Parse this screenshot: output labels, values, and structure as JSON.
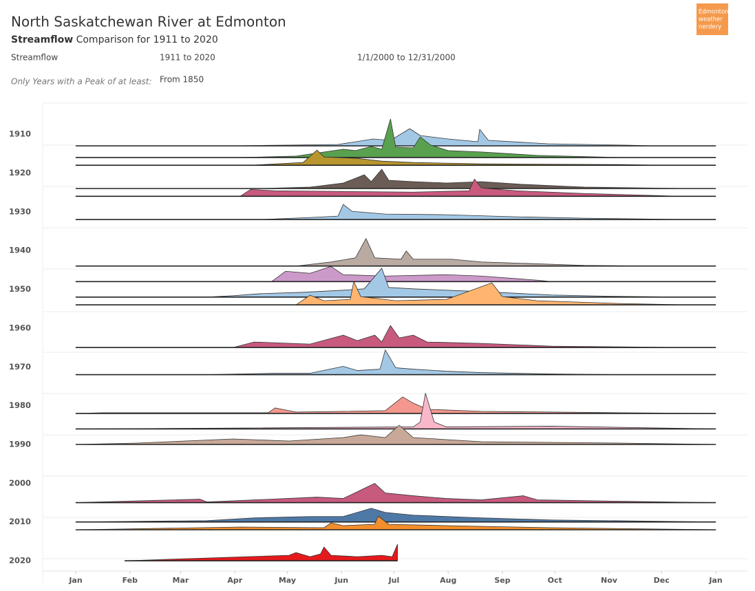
{
  "header": {
    "title": "North Saskatchewan River at Edmonton",
    "subtitle_bold": "Streamflow",
    "subtitle_rest": "Comparison for 1911 to 2020",
    "filters": [
      "Streamflow",
      "1911 to 2020",
      "1/1/2000 to 12/31/2000"
    ],
    "peak_label": "Only Years with a Peak of at least:",
    "peak_value": "From 1850",
    "logo": [
      "Edmonton",
      "weather",
      "nerdery"
    ]
  },
  "chart_data": {
    "type": "ridgeline",
    "xlim": [
      0,
      366
    ],
    "xticks": [
      {
        "value": 0,
        "label": "Jan"
      },
      {
        "value": 31,
        "label": "Feb"
      },
      {
        "value": 60,
        "label": "Mar"
      },
      {
        "value": 91,
        "label": "Apr"
      },
      {
        "value": 121,
        "label": "May"
      },
      {
        "value": 152,
        "label": "Jun"
      },
      {
        "value": 182,
        "label": "Jul"
      },
      {
        "value": 213,
        "label": "Aug"
      },
      {
        "value": 244,
        "label": "Sep"
      },
      {
        "value": 274,
        "label": "Oct"
      },
      {
        "value": 305,
        "label": "Nov"
      },
      {
        "value": 335,
        "label": "Dec"
      },
      {
        "value": 366,
        "label": "Jan"
      }
    ],
    "ylim": [
      1902,
      2023
    ],
    "yticks": [
      1910,
      1920,
      1930,
      1940,
      1950,
      1960,
      1970,
      1980,
      1990,
      2000,
      2010,
      2020
    ],
    "series": [
      {
        "year": 1913,
        "color": "#a3c8e6",
        "x": [
          0,
          90,
          150,
          170,
          180,
          191,
          197,
          213,
          230,
          231,
          236,
          270,
          315,
          330,
          366
        ],
        "values": [
          0,
          0,
          2,
          10,
          8,
          25,
          15,
          10,
          6,
          24,
          8,
          3,
          1,
          0,
          0
        ]
      },
      {
        "year": 1916,
        "color": "#59a14f",
        "x": [
          0,
          94,
          126,
          153,
          160,
          169,
          175,
          180,
          183,
          193,
          197,
          203,
          213,
          232,
          264,
          311,
          366
        ],
        "values": [
          0,
          0,
          2,
          12,
          10,
          16,
          12,
          56,
          15,
          14,
          30,
          18,
          10,
          8,
          3,
          0,
          0
        ]
      },
      {
        "year": 1918,
        "color": "#b8962e",
        "x": [
          0,
          100,
          130,
          138,
          142,
          161,
          175,
          193,
          232,
          311,
          335,
          366
        ],
        "values": [
          0,
          0,
          4,
          22,
          12,
          10,
          6,
          4,
          2,
          1,
          0,
          0
        ]
      },
      {
        "year": 1924,
        "color": "#6b5c55",
        "x": [
          0,
          106,
          134,
          153,
          165,
          169,
          175,
          179,
          193,
          212,
          232,
          256,
          291,
          350,
          366
        ],
        "values": [
          0,
          0,
          2,
          8,
          20,
          10,
          28,
          12,
          10,
          8,
          10,
          6,
          2,
          0,
          0
        ]
      },
      {
        "year": 1926,
        "color": "#c85a7e",
        "x": [
          0,
          94,
          100,
          114,
          153,
          193,
          225,
          228,
          232,
          252,
          291,
          346,
          366
        ],
        "values": [
          0,
          0,
          10,
          8,
          7,
          6,
          8,
          25,
          12,
          8,
          4,
          0,
          0
        ]
      },
      {
        "year": 1932,
        "color": "#a3c8e6",
        "x": [
          0,
          106,
          134,
          150,
          153,
          158,
          177,
          212,
          252,
          291,
          350,
          366
        ],
        "values": [
          0,
          0,
          3,
          5,
          22,
          12,
          8,
          7,
          4,
          2,
          0,
          0
        ]
      },
      {
        "year": 1944,
        "color": "#b9aaa2",
        "x": [
          0,
          126,
          146,
          160,
          166,
          171,
          186,
          189,
          193,
          215,
          232,
          291,
          330,
          366
        ],
        "values": [
          0,
          0,
          6,
          12,
          40,
          12,
          10,
          22,
          10,
          10,
          6,
          1,
          0,
          0
        ]
      },
      {
        "year": 1948,
        "color": "#cc9ac9",
        "x": [
          0,
          112,
          120,
          134,
          146,
          153,
          177,
          212,
          232,
          264,
          272,
          366
        ],
        "values": [
          0,
          0,
          15,
          12,
          22,
          10,
          8,
          10,
          8,
          2,
          0,
          0
        ]
      },
      {
        "year": 1952,
        "color": "#a3c8e6",
        "x": [
          0,
          75,
          90,
          106,
          130,
          153,
          165,
          175,
          179,
          193,
          212,
          232,
          272,
          311,
          350,
          366
        ],
        "values": [
          0,
          0,
          2,
          5,
          7,
          10,
          12,
          42,
          14,
          12,
          10,
          8,
          3,
          1,
          0,
          0
        ]
      },
      {
        "year": 1954,
        "color": "#ffb570",
        "x": [
          0,
          126,
          134,
          142,
          157,
          159,
          163,
          183,
          212,
          238,
          244,
          264,
          311,
          350,
          366
        ],
        "values": [
          0,
          0,
          14,
          6,
          8,
          34,
          12,
          6,
          8,
          32,
          12,
          6,
          2,
          0,
          0
        ]
      },
      {
        "year": 1965,
        "color": "#c85a7e",
        "x": [
          0,
          90,
          102,
          134,
          153,
          161,
          171,
          175,
          180,
          185,
          193,
          201,
          232,
          272,
          350,
          366
        ],
        "values": [
          0,
          0,
          8,
          5,
          18,
          10,
          18,
          8,
          32,
          14,
          18,
          8,
          6,
          2,
          0,
          0
        ]
      },
      {
        "year": 1972,
        "color": "#a3c8e6",
        "x": [
          0,
          75,
          114,
          134,
          153,
          161,
          174,
          177,
          183,
          193,
          212,
          232,
          272,
          311,
          366
        ],
        "values": [
          0,
          0,
          2,
          2,
          12,
          6,
          8,
          36,
          10,
          8,
          5,
          3,
          1,
          0,
          0
        ]
      },
      {
        "year": 1982,
        "color": "#f4978e",
        "x": [
          0,
          16,
          110,
          114,
          126,
          153,
          177,
          187,
          193,
          201,
          232,
          311,
          366
        ],
        "values": [
          0,
          1,
          1,
          8,
          2,
          3,
          4,
          24,
          15,
          6,
          3,
          1,
          0
        ]
      },
      {
        "year": 1986,
        "color": "#f9b8c9",
        "x": [
          0,
          75,
          193,
          197,
          200,
          205,
          212,
          272,
          366
        ],
        "values": [
          0,
          1,
          3,
          10,
          52,
          10,
          3,
          4,
          0
        ]
      },
      {
        "year": 1990,
        "color": "#c8a898",
        "x": [
          0,
          35,
          90,
          122,
          153,
          163,
          177,
          185,
          193,
          232,
          311,
          366
        ],
        "values": [
          0,
          2,
          8,
          5,
          10,
          14,
          10,
          28,
          10,
          4,
          2,
          0
        ]
      },
      {
        "year": 2005,
        "color": "#c85a7e",
        "x": [
          0,
          71,
          75,
          94,
          138,
          153,
          171,
          177,
          193,
          212,
          232,
          256,
          264,
          311,
          366
        ],
        "values": [
          0,
          5,
          1,
          3,
          8,
          6,
          28,
          14,
          10,
          6,
          4,
          10,
          4,
          2,
          0
        ]
      },
      {
        "year": 2010,
        "color": "#4e79a7",
        "x": [
          0,
          75,
          102,
          134,
          153,
          169,
          177,
          193,
          232,
          272,
          366
        ],
        "values": [
          0,
          2,
          6,
          8,
          8,
          20,
          14,
          10,
          6,
          3,
          0
        ]
      },
      {
        "year": 2012,
        "color": "#f28e2b",
        "x": [
          0,
          94,
          142,
          146,
          153,
          171,
          173,
          179,
          212,
          272,
          366
        ],
        "values": [
          0,
          4,
          3,
          10,
          6,
          8,
          20,
          8,
          6,
          3,
          0
        ]
      },
      {
        "year": 2020,
        "color": "#e41a1c",
        "x": [
          28,
          122,
          126,
          134,
          140,
          142,
          146,
          161,
          175,
          181,
          184
        ],
        "values": [
          0,
          8,
          12,
          6,
          10,
          20,
          8,
          6,
          8,
          6,
          24
        ]
      }
    ]
  }
}
